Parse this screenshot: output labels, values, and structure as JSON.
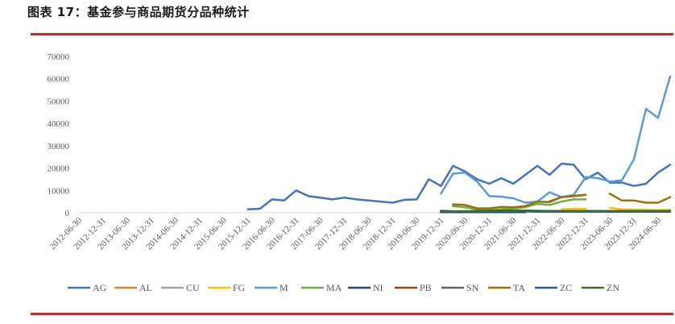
{
  "title": "图表 17：基金参与商品期货分品种统计",
  "chart_data": {
    "type": "line",
    "ylim": [
      0,
      70000
    ],
    "yticks": [
      0,
      10000,
      20000,
      30000,
      40000,
      50000,
      60000,
      70000
    ],
    "x": [
      "2012-06-30",
      "2012-09-30",
      "2012-12-31",
      "2013-03-31",
      "2013-06-30",
      "2013-09-30",
      "2013-12-31",
      "2014-03-31",
      "2014-06-30",
      "2014-09-30",
      "2014-12-31",
      "2015-03-31",
      "2015-06-30",
      "2015-09-30",
      "2015-12-31",
      "2016-03-31",
      "2016-06-30",
      "2016-09-30",
      "2016-12-31",
      "2017-03-31",
      "2017-06-30",
      "2017-09-30",
      "2017-12-31",
      "2018-03-31",
      "2018-06-30",
      "2018-09-30",
      "2018-12-31",
      "2019-03-31",
      "2019-06-30",
      "2019-09-30",
      "2019-12-31",
      "2020-03-31",
      "2020-06-30",
      "2020-09-30",
      "2020-12-31",
      "2021-03-31",
      "2021-06-30",
      "2021-09-30",
      "2021-12-31",
      "2022-03-31",
      "2022-06-30",
      "2022-09-30",
      "2022-12-31",
      "2023-03-31",
      "2023-06-30",
      "2023-09-30",
      "2023-12-31",
      "2024-03-31",
      "2024-06-30",
      "2024-09-30"
    ],
    "xtick_labels": [
      "2012-06-30",
      "2012-12-31",
      "2013-06-30",
      "2013-12-31",
      "2014-06-30",
      "2014-12-31",
      "2015-06-30",
      "2015-12-31",
      "2016-06-30",
      "2016-12-31",
      "2017-06-30",
      "2017-12-31",
      "2018-06-30",
      "2018-12-31",
      "2019-06-30",
      "2019-12-31",
      "2020-06-30",
      "2020-12-31",
      "2021-06-30",
      "2021-12-31",
      "2022-06-30",
      "2022-12-31",
      "2023-06-30",
      "2023-12-31",
      "2024-06-30"
    ],
    "series": [
      {
        "name": "AG",
        "color": "#4472C4",
        "values": [
          null,
          null,
          null,
          null,
          null,
          null,
          null,
          null,
          null,
          null,
          null,
          null,
          null,
          null,
          1500,
          1800,
          6000,
          5500,
          10000,
          7500,
          6800,
          6000,
          6800,
          6000,
          5500,
          5000,
          4500,
          5800,
          6000,
          15000,
          12000,
          21000,
          18500,
          15000,
          13000,
          15500,
          13000,
          17000,
          21000,
          17000,
          22000,
          21500,
          15000,
          18000,
          13500,
          13500,
          12000,
          13000,
          18000,
          21500
        ]
      },
      {
        "name": "AL",
        "color": "#ED7D31",
        "values": [
          null,
          null,
          null,
          null,
          null,
          null,
          null,
          null,
          null,
          null,
          null,
          null,
          null,
          null,
          null,
          null,
          null,
          null,
          null,
          null,
          null,
          null,
          null,
          null,
          null,
          null,
          null,
          null,
          null,
          null,
          null,
          null,
          null,
          null,
          null,
          null,
          null,
          null,
          null,
          null,
          null,
          null,
          null,
          null,
          null,
          null,
          null,
          null,
          null,
          null
        ]
      },
      {
        "name": "CU",
        "color": "#A5A5A5",
        "values": [
          null,
          null,
          null,
          null,
          null,
          null,
          null,
          null,
          null,
          null,
          null,
          null,
          null,
          null,
          null,
          null,
          null,
          null,
          null,
          null,
          null,
          null,
          null,
          null,
          null,
          null,
          null,
          null,
          null,
          null,
          null,
          null,
          null,
          null,
          null,
          null,
          null,
          null,
          null,
          null,
          null,
          null,
          null,
          null,
          null,
          null,
          null,
          null,
          null,
          null
        ]
      },
      {
        "name": "FG",
        "color": "#FFC000",
        "values": [
          null,
          null,
          null,
          null,
          null,
          null,
          null,
          null,
          null,
          null,
          null,
          null,
          null,
          null,
          null,
          null,
          null,
          null,
          null,
          null,
          null,
          null,
          null,
          null,
          null,
          null,
          null,
          null,
          null,
          null,
          null,
          null,
          null,
          null,
          null,
          null,
          null,
          null,
          null,
          null,
          1500,
          1800,
          1800,
          null,
          2200,
          1500,
          1400,
          1300,
          1200,
          1400
        ]
      },
      {
        "name": "M",
        "color": "#5B9BD5",
        "values": [
          null,
          null,
          null,
          null,
          null,
          null,
          null,
          null,
          null,
          null,
          null,
          null,
          null,
          null,
          null,
          null,
          null,
          null,
          null,
          null,
          null,
          null,
          null,
          null,
          null,
          null,
          null,
          null,
          null,
          null,
          8500,
          17500,
          18000,
          14000,
          7500,
          7200,
          6500,
          4500,
          5000,
          9200,
          7000,
          8000,
          16000,
          15500,
          14000,
          14500,
          24000,
          46500,
          42500,
          61000
        ]
      },
      {
        "name": "MA",
        "color": "#70AD47",
        "values": [
          null,
          null,
          null,
          null,
          null,
          null,
          null,
          null,
          null,
          null,
          null,
          null,
          null,
          null,
          null,
          null,
          null,
          null,
          null,
          null,
          null,
          null,
          null,
          null,
          null,
          null,
          null,
          null,
          null,
          null,
          null,
          3000,
          2500,
          1500,
          1200,
          1500,
          2000,
          2500,
          4000,
          3500,
          5000,
          6000,
          6000,
          null,
          null,
          null,
          null,
          null,
          null,
          null
        ]
      },
      {
        "name": "NI",
        "color": "#264478",
        "values": [
          null,
          null,
          null,
          null,
          null,
          null,
          null,
          null,
          null,
          null,
          null,
          null,
          null,
          null,
          null,
          null,
          null,
          null,
          null,
          null,
          null,
          null,
          null,
          null,
          null,
          null,
          null,
          null,
          null,
          null,
          300,
          300,
          300,
          300,
          300,
          300,
          300,
          300,
          null,
          null,
          null,
          null,
          null,
          null,
          null,
          null,
          null,
          null,
          null,
          null
        ]
      },
      {
        "name": "PB",
        "color": "#9E480E",
        "values": [
          null,
          null,
          null,
          null,
          null,
          null,
          null,
          null,
          null,
          null,
          null,
          null,
          null,
          null,
          null,
          null,
          null,
          null,
          null,
          null,
          null,
          null,
          null,
          null,
          null,
          null,
          null,
          null,
          null,
          null,
          null,
          null,
          null,
          null,
          null,
          null,
          null,
          null,
          null,
          5000,
          7000,
          7500,
          8000,
          null,
          null,
          null,
          null,
          null,
          null,
          null
        ]
      },
      {
        "name": "SN",
        "color": "#636363",
        "values": [
          null,
          null,
          null,
          null,
          null,
          null,
          null,
          null,
          null,
          null,
          null,
          null,
          null,
          null,
          null,
          null,
          null,
          null,
          null,
          null,
          null,
          null,
          null,
          null,
          null,
          null,
          null,
          null,
          null,
          null,
          null,
          null,
          null,
          null,
          null,
          null,
          null,
          null,
          null,
          null,
          null,
          null,
          null,
          null,
          null,
          null,
          null,
          null,
          null,
          null
        ]
      },
      {
        "name": "TA",
        "color": "#997300",
        "values": [
          null,
          null,
          null,
          null,
          null,
          null,
          null,
          null,
          null,
          null,
          null,
          null,
          null,
          null,
          null,
          null,
          null,
          null,
          null,
          null,
          null,
          null,
          null,
          null,
          null,
          null,
          null,
          null,
          null,
          null,
          null,
          3800,
          3500,
          2000,
          2000,
          2600,
          2500,
          3000,
          5000,
          4800,
          7000,
          7500,
          8000,
          null,
          8500,
          5500,
          5500,
          4500,
          4500,
          7000
        ]
      },
      {
        "name": "ZC",
        "color": "#255E91",
        "values": [
          null,
          null,
          null,
          null,
          null,
          null,
          null,
          null,
          null,
          null,
          null,
          null,
          null,
          null,
          null,
          null,
          null,
          null,
          null,
          null,
          null,
          null,
          null,
          null,
          null,
          null,
          null,
          null,
          null,
          null,
          600,
          500,
          500,
          500,
          500,
          600,
          600,
          600,
          500,
          500,
          500,
          500,
          500,
          500,
          500,
          500,
          500,
          500,
          500,
          500
        ]
      },
      {
        "name": "ZN",
        "color": "#43682B",
        "values": [
          null,
          null,
          null,
          null,
          null,
          null,
          null,
          null,
          null,
          null,
          null,
          null,
          null,
          null,
          null,
          null,
          null,
          null,
          null,
          null,
          null,
          null,
          null,
          null,
          null,
          null,
          null,
          null,
          null,
          null,
          900,
          700,
          700,
          800,
          900,
          1000,
          1100,
          1000,
          900,
          800,
          800,
          800,
          800,
          800,
          800,
          800,
          800,
          800,
          800,
          800
        ]
      }
    ],
    "legend_position": "bottom",
    "grid": false
  }
}
